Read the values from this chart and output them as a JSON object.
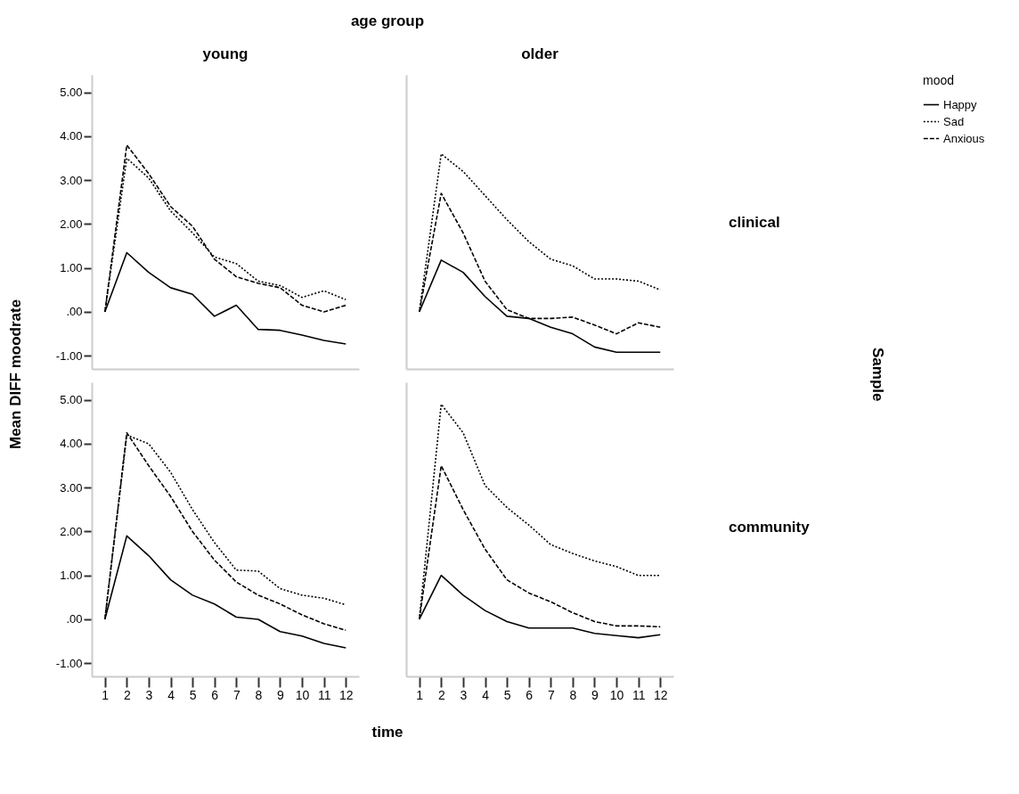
{
  "chart_data": [
    {
      "type": "line",
      "title": "young",
      "ylabel": "Mean DIFF moodrate",
      "annotations": [
        "age group"
      ],
      "x": [
        1,
        2,
        3,
        4,
        5,
        6,
        7,
        8,
        9,
        10,
        11,
        12
      ],
      "xlim": [
        0.4,
        12.6
      ],
      "ylim": [
        -1.3,
        5.4
      ],
      "xticks": [
        1,
        2,
        3,
        4,
        5,
        6,
        7,
        8,
        9,
        10,
        11,
        12
      ],
      "yticks": [
        {
          "value": -1,
          "label": "-1.00"
        },
        {
          "value": 0,
          "label": ".00"
        },
        {
          "value": 1,
          "label": "1.00"
        },
        {
          "value": 2,
          "label": "2.00"
        },
        {
          "value": 3,
          "label": "3.00"
        },
        {
          "value": 4,
          "label": "4.00"
        },
        {
          "value": 5,
          "label": "5.00"
        }
      ],
      "tick_labels": "y",
      "series": [
        {
          "color": "#000000",
          "line_style": "solid",
          "values": [
            0,
            1.35,
            0.9,
            0.55,
            0.4,
            -0.1,
            0.15,
            -0.4,
            -0.42,
            -0.53,
            -0.65,
            -0.73
          ]
        },
        {
          "color": "#000000",
          "line_style": "dotted",
          "values": [
            0,
            3.5,
            3.05,
            2.3,
            1.8,
            1.25,
            1.1,
            0.7,
            0.6,
            0.33,
            0.48,
            0.28
          ]
        },
        {
          "color": "#000000",
          "line_style": "dashed",
          "values": [
            0,
            3.8,
            3.15,
            2.4,
            1.95,
            1.2,
            0.8,
            0.65,
            0.55,
            0.15,
            0.0,
            0.15
          ]
        }
      ]
    },
    {
      "type": "line",
      "title": "older",
      "y2label": "clinical",
      "legend_title": "mood",
      "legend": "top right",
      "annotations": [
        "Sample"
      ],
      "x": [
        1,
        2,
        3,
        4,
        5,
        6,
        7,
        8,
        9,
        10,
        11,
        12
      ],
      "xlim": [
        0.4,
        12.6
      ],
      "ylim": [
        -1.3,
        5.4
      ],
      "xticks": [
        1,
        2,
        3,
        4,
        5,
        6,
        7,
        8,
        9,
        10,
        11,
        12
      ],
      "tick_labels": false,
      "series": [
        {
          "name": "Happy",
          "color": "#000000",
          "line_style": "solid",
          "values": [
            0,
            1.18,
            0.9,
            0.35,
            -0.1,
            -0.15,
            -0.35,
            -0.5,
            -0.8,
            -0.92,
            -0.92,
            -0.92
          ]
        },
        {
          "name": "Sad",
          "color": "#000000",
          "line_style": "dotted",
          "values": [
            0,
            3.6,
            3.2,
            2.65,
            2.1,
            1.6,
            1.2,
            1.05,
            0.75,
            0.75,
            0.7,
            0.5
          ]
        },
        {
          "name": "Anxious",
          "color": "#000000",
          "line_style": "dashed",
          "values": [
            0,
            2.7,
            1.8,
            0.7,
            0.05,
            -0.15,
            -0.15,
            -0.12,
            -0.3,
            -0.5,
            -0.25,
            -0.35
          ]
        }
      ]
    },
    {
      "type": "line",
      "xlabel": "time",
      "x": [
        1,
        2,
        3,
        4,
        5,
        6,
        7,
        8,
        9,
        10,
        11,
        12
      ],
      "xlim": [
        0.4,
        12.6
      ],
      "ylim": [
        -1.3,
        5.4
      ],
      "xticks": [
        1,
        2,
        3,
        4,
        5,
        6,
        7,
        8,
        9,
        10,
        11,
        12
      ],
      "yticks": [
        {
          "value": -1,
          "label": "-1.00"
        },
        {
          "value": 0,
          "label": ".00"
        },
        {
          "value": 1,
          "label": "1.00"
        },
        {
          "value": 2,
          "label": "2.00"
        },
        {
          "value": 3,
          "label": "3.00"
        },
        {
          "value": 4,
          "label": "4.00"
        },
        {
          "value": 5,
          "label": "5.00"
        }
      ],
      "series": [
        {
          "color": "#000000",
          "line_style": "solid",
          "values": [
            0,
            1.9,
            1.45,
            0.9,
            0.55,
            0.35,
            0.05,
            0.0,
            -0.28,
            -0.38,
            -0.55,
            -0.65
          ]
        },
        {
          "color": "#000000",
          "line_style": "dotted",
          "values": [
            0,
            4.2,
            4.0,
            3.35,
            2.5,
            1.75,
            1.12,
            1.1,
            0.7,
            0.55,
            0.48,
            0.33
          ]
        },
        {
          "color": "#000000",
          "line_style": "dashed",
          "values": [
            0,
            4.25,
            3.5,
            2.8,
            2.0,
            1.35,
            0.85,
            0.55,
            0.35,
            0.1,
            -0.1,
            -0.25
          ]
        }
      ]
    },
    {
      "type": "line",
      "y2label": "community",
      "x": [
        1,
        2,
        3,
        4,
        5,
        6,
        7,
        8,
        9,
        10,
        11,
        12
      ],
      "xlim": [
        0.4,
        12.6
      ],
      "ylim": [
        -1.3,
        5.4
      ],
      "xticks": [
        1,
        2,
        3,
        4,
        5,
        6,
        7,
        8,
        9,
        10,
        11,
        12
      ],
      "tick_labels": "x",
      "series": [
        {
          "color": "#000000",
          "line_style": "solid",
          "values": [
            0,
            1.0,
            0.55,
            0.2,
            -0.05,
            -0.2,
            -0.2,
            -0.2,
            -0.32,
            -0.37,
            -0.42,
            -0.35
          ]
        },
        {
          "color": "#000000",
          "line_style": "dotted",
          "values": [
            0,
            4.9,
            4.25,
            3.05,
            2.55,
            2.15,
            1.7,
            1.5,
            1.33,
            1.2,
            1.0,
            1.0
          ]
        },
        {
          "color": "#000000",
          "line_style": "dashed",
          "values": [
            0,
            3.5,
            2.5,
            1.6,
            0.9,
            0.6,
            0.4,
            0.15,
            -0.05,
            -0.15,
            -0.15,
            -0.17
          ]
        }
      ]
    }
  ]
}
